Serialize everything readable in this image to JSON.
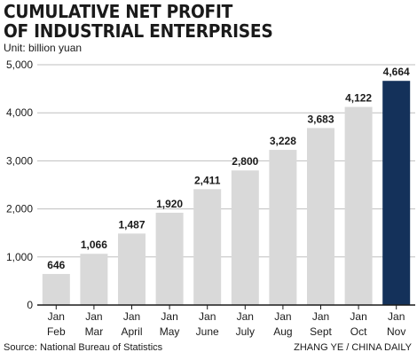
{
  "header": {
    "title_line1": "CUMULATIVE NET PROFIT",
    "title_line2": "OF INDUSTRIAL ENTERPRISES",
    "unit": "Unit: billion yuan"
  },
  "footer": {
    "source": "Source: National Bureau of Statistics",
    "credit": "ZHANG YE / CHINA DAILY"
  },
  "colors": {
    "bar": "#d9d9d9",
    "highlight_bar": "#14315a",
    "grid": "#bfbfbf",
    "axis": "#1a1a1a"
  },
  "chart_data": {
    "type": "bar",
    "title": "CUMULATIVE NET PROFIT OF INDUSTRIAL ENTERPRISES",
    "unit": "Unit: billion yuan",
    "categories": [
      [
        "Jan",
        "Feb"
      ],
      [
        "Jan",
        "Mar"
      ],
      [
        "Jan",
        "April"
      ],
      [
        "Jan",
        "May"
      ],
      [
        "Jan",
        "June"
      ],
      [
        "Jan",
        "July"
      ],
      [
        "Jan",
        "Aug"
      ],
      [
        "Jan",
        "Sept"
      ],
      [
        "Jan",
        "Oct"
      ],
      [
        "Jan",
        "Nov"
      ]
    ],
    "values": [
      646,
      1066,
      1487,
      1920,
      2411,
      2800,
      3228,
      3683,
      4122,
      4664
    ],
    "value_labels": [
      "646",
      "1,066",
      "1,487",
      "1,920",
      "2,411",
      "2,800",
      "3,228",
      "3,683",
      "4,122",
      "4,664"
    ],
    "highlight_index": 9,
    "ylim": [
      0,
      5000
    ],
    "yticks": [
      0,
      1000,
      2000,
      3000,
      4000,
      5000
    ],
    "ytick_labels": [
      "0",
      "1,000",
      "2,000",
      "3,000",
      "4,000",
      "5,000"
    ],
    "grid": true
  }
}
